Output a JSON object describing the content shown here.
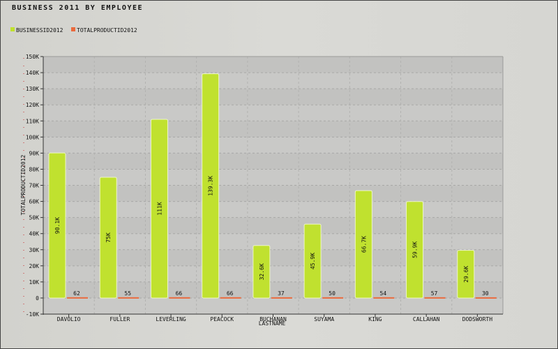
{
  "chart_data": {
    "type": "bar",
    "title": "BUSINESS 2011 BY  EMPLOYEE",
    "xlabel": "LASTNAME",
    "ylabel": "TOTALPRODUCTID2012",
    "ylim": [
      -10000,
      150000
    ],
    "yticks": [
      -10000,
      0,
      10000,
      20000,
      30000,
      40000,
      50000,
      60000,
      70000,
      80000,
      90000,
      100000,
      110000,
      120000,
      130000,
      140000,
      150000
    ],
    "ytick_labels": [
      "-10K",
      "0",
      "10K",
      "20K",
      "30K",
      "40K",
      "50K",
      "60K",
      "70K",
      "80K",
      "90K",
      "100K",
      "110K",
      "120K",
      "130K",
      "140K",
      "150K"
    ],
    "categories": [
      "DAVOLIO",
      "FULLER",
      "LEVERLING",
      "PEACOCK",
      "BUCHANAN",
      "SUYAMA",
      "KING",
      "CALLAHAN",
      "DODSWORTH"
    ],
    "series": [
      {
        "name": "BUSINESSID2012",
        "color": "#c0e12f",
        "values": [
          90100,
          75000,
          111000,
          139300,
          32600,
          45900,
          66700,
          59900,
          29600
        ],
        "labels": [
          "90.1K",
          "75K",
          "111K",
          "139.3K",
          "32.6K",
          "45.9K",
          "66.7K",
          "59.9K",
          "29.6K"
        ]
      },
      {
        "name": "TOTALPRODUCTID2012",
        "color": "#ea6a3d",
        "values": [
          62,
          55,
          66,
          66,
          37,
          50,
          54,
          57,
          30
        ],
        "labels": [
          "62",
          "55",
          "66",
          "66",
          "37",
          "50",
          "54",
          "57",
          "30"
        ]
      }
    ],
    "grid": true,
    "legend_position": "top-left"
  }
}
